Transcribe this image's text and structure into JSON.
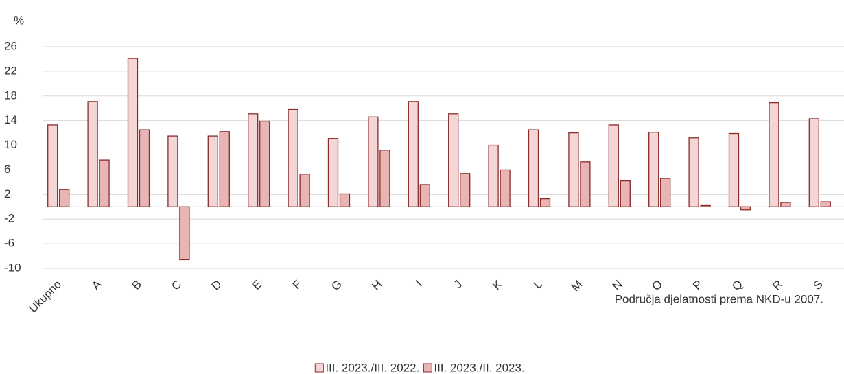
{
  "chart_data": {
    "type": "bar",
    "y_unit": "%",
    "x_label": "Područja djelatnosti prema NKD-u 2007.",
    "categories": [
      "Ukupno",
      "A",
      "B",
      "C",
      "D",
      "E",
      "F",
      "G",
      "H",
      "I",
      "J",
      "K",
      "L",
      "M",
      "N",
      "O",
      "P",
      "Q",
      "R",
      "S"
    ],
    "series": [
      {
        "name": "III. 2023./III. 2022.",
        "color": "#f4d6d6",
        "values": [
          13.3,
          17.1,
          24.1,
          11.5,
          11.5,
          15.1,
          15.8,
          11.1,
          14.6,
          17.1,
          15.1,
          10.0,
          12.5,
          12.0,
          13.3,
          12.1,
          11.2,
          11.9,
          16.9,
          14.3
        ]
      },
      {
        "name": "III. 2023./II. 2023.",
        "color": "#e8b4b4",
        "values": [
          2.8,
          7.6,
          12.5,
          -8.6,
          12.2,
          13.9,
          5.3,
          2.1,
          9.2,
          3.6,
          5.4,
          6.0,
          1.3,
          7.3,
          4.2,
          4.6,
          0.2,
          -0.5,
          0.7,
          0.8
        ]
      }
    ],
    "edge_color": "#8b2b2b",
    "ylim": [
      -10,
      26
    ],
    "yticks": [
      -10,
      -6,
      -2,
      2,
      6,
      10,
      14,
      18,
      22,
      26
    ],
    "grid": true,
    "legend": "bottom"
  }
}
